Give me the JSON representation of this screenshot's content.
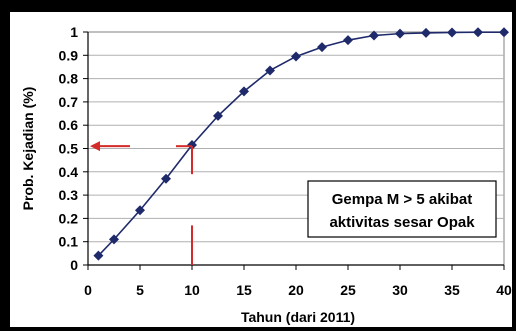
{
  "chart_data": {
    "type": "line",
    "title": "",
    "xlabel": "Tahun (dari 2011)",
    "ylabel": "Prob. Kejadian (%)",
    "xlim": [
      0,
      40
    ],
    "ylim": [
      0,
      1
    ],
    "x_ticks": [
      0,
      5,
      10,
      15,
      20,
      25,
      30,
      35,
      40
    ],
    "y_ticks": [
      0,
      0.1,
      0.2,
      0.3,
      0.4,
      0.5,
      0.6,
      0.7,
      0.8,
      0.9,
      1
    ],
    "grid": "horizontal",
    "legend": "none",
    "annotation": {
      "line1": "Gempa M > 5 akibat",
      "line2": "aktivitas sesar Opak"
    },
    "marker_annotations": {
      "arrow_at_y": 0.51,
      "vertical_line_at_x": 10
    },
    "series": [
      {
        "x": [
          1,
          2.5,
          5,
          7.5,
          10,
          12.5,
          15,
          17.5,
          20,
          22.5,
          25,
          27.5,
          30,
          32.5,
          35,
          37.5,
          40
        ],
        "values": [
          0.04,
          0.11,
          0.235,
          0.37,
          0.515,
          0.64,
          0.745,
          0.835,
          0.895,
          0.935,
          0.965,
          0.985,
          0.993,
          0.996,
          0.998,
          0.999,
          0.999
        ],
        "color": "#1f2a6b"
      }
    ],
    "colors": {
      "frame": "#000000",
      "plot_background": "#ffffff",
      "grid": "#b0b0b0",
      "annotation_red": "#d42a2a"
    }
  }
}
